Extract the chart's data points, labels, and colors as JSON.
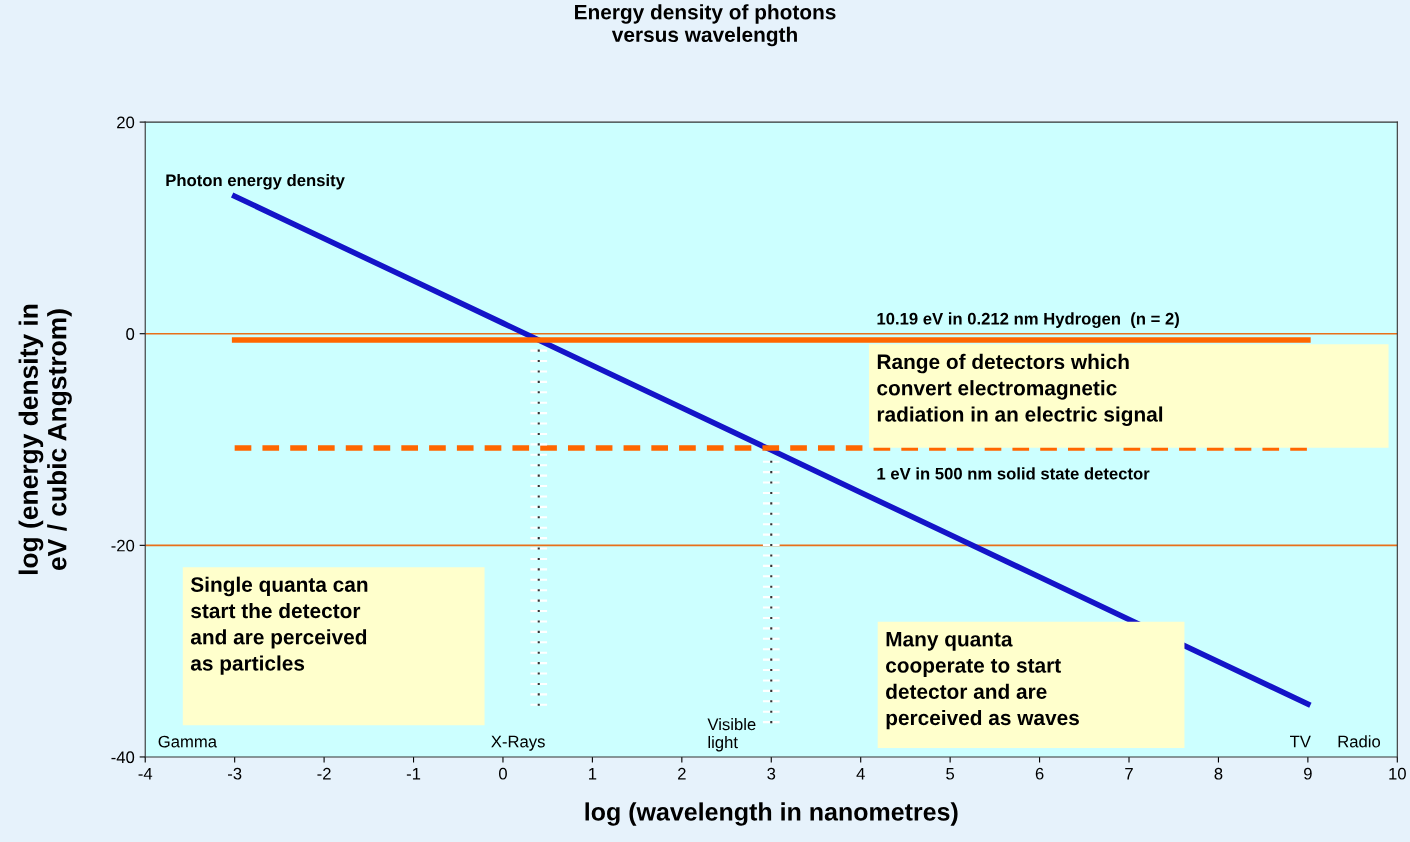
{
  "chart_data": {
    "type": "line",
    "title": "Energy density of photons\nversus wavelength",
    "xlabel": "log (wavelength in nanometres)",
    "ylabel": "log (energy density in\neV / cubic Angstrom)",
    "xlim": [
      -4,
      10
    ],
    "ylim": [
      -40,
      20
    ],
    "xticks": [
      -4,
      -3,
      -2,
      -1,
      0,
      1,
      2,
      3,
      4,
      5,
      6,
      7,
      8,
      9,
      10
    ],
    "yticks": [
      -40,
      -20,
      0,
      20
    ],
    "legend": false,
    "marker": "none",
    "series": [
      {
        "x": [
          -3,
          -2,
          -1,
          0,
          1,
          2,
          3,
          4,
          5,
          6,
          7,
          8,
          9
        ],
        "values": [
          13,
          9,
          5,
          1,
          -3,
          -7,
          -11,
          -15,
          -19,
          -23,
          -27,
          -31,
          -35
        ],
        "color": "#1414c8",
        "line_style": "solid"
      },
      {
        "x": [
          -3,
          9
        ],
        "values": [
          -0.6,
          -0.6
        ],
        "color": "#ff6600",
        "line_style": "solid"
      },
      {
        "x": [
          -3,
          9
        ],
        "values": [
          -10.8,
          -10.8
        ],
        "color": "#ff6600",
        "line_style": "dashed"
      },
      {
        "x": [
          0.4,
          0.4
        ],
        "values": [
          -1.5,
          -35.5
        ],
        "color": "#333333",
        "line_style": "dotted"
      },
      {
        "x": [
          3,
          3
        ],
        "values": [
          -12,
          -37
        ],
        "color": "#333333",
        "line_style": "dotted"
      }
    ],
    "ref_lines": [
      {
        "axis": "y",
        "value": 0,
        "color": "#e8701a"
      },
      {
        "axis": "y",
        "value": -20,
        "color": "#e8701a"
      }
    ],
    "annotations": [
      "Photon energy density",
      "10.19 eV in 0.212 nm Hydrogen  (n = 2)",
      "1 eV in 500 nm solid state detector",
      "Gamma",
      "X-Rays",
      "Visible\nlight",
      "TV",
      "Radio",
      "Range of detectors which\nconvert electromagnetic\nradiation in an electric signal",
      "Single quanta can\nstart the detector\nand are perceived\nas particles",
      "Many quanta\ncooperate to start\ndetector and are\nperceived as waves"
    ]
  }
}
